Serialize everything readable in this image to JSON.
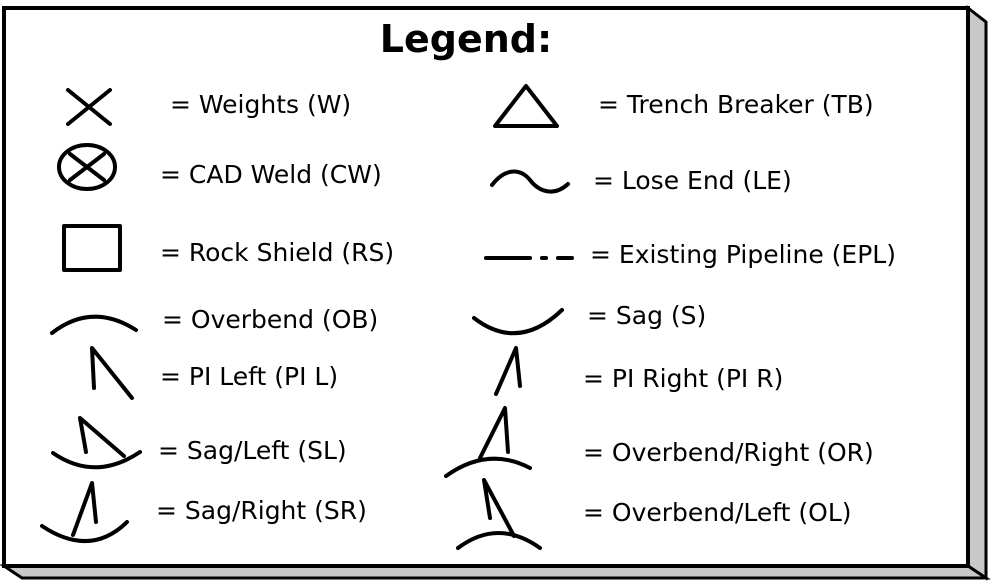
{
  "legend": {
    "title": "Legend:",
    "items": [
      {
        "icon": "x-icon",
        "label": "=  Weights (W)"
      },
      {
        "icon": "circled-x-icon",
        "label": "=  CAD Weld (CW)"
      },
      {
        "icon": "rectangle-icon",
        "label": "=  Rock Shield (RS)"
      },
      {
        "icon": "overbend-arc-icon",
        "label": "=  Overbend (OB)"
      },
      {
        "icon": "pi-left-icon",
        "label": "=  PI Left (PI L)"
      },
      {
        "icon": "sag-left-icon",
        "label": "=  Sag/Left (SL)"
      },
      {
        "icon": "sag-right-icon",
        "label": "=  Sag/Right (SR)"
      },
      {
        "icon": "triangle-icon",
        "label": "=  Trench Breaker (TB)"
      },
      {
        "icon": "wave-icon",
        "label": "=  Lose End (LE)"
      },
      {
        "icon": "dash-dot-line-icon",
        "label": "=  Existing Pipeline (EPL)"
      },
      {
        "icon": "sag-arc-icon",
        "label": "=  Sag (S)"
      },
      {
        "icon": "pi-right-icon",
        "label": "=  PI Right (PI R)"
      },
      {
        "icon": "overbend-right-icon",
        "label": "=  Overbend/Right (OR)"
      },
      {
        "icon": "overbend-left-icon",
        "label": "=  Overbend/Left (OL)"
      }
    ]
  }
}
